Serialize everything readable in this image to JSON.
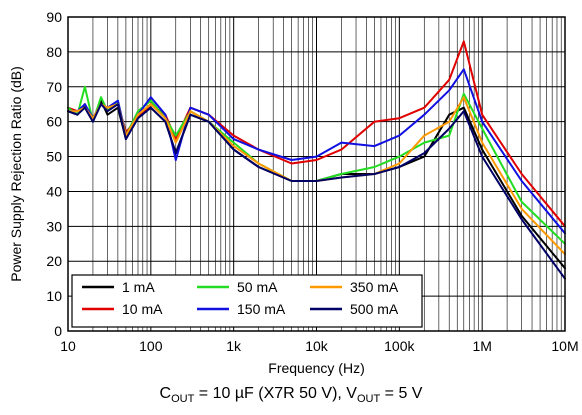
{
  "chart_data": {
    "type": "line",
    "xlabel": "Frequency (Hz)",
    "ylabel": "Power Supply Rejection Ratio (dB)",
    "xscale": "log",
    "xlim": [
      10,
      10000000
    ],
    "ylim": [
      0,
      90
    ],
    "grid": true,
    "legend_position": "bottom-left",
    "x_ticks": [
      10,
      100,
      1000,
      10000,
      100000,
      1000000,
      10000000
    ],
    "x_tick_labels": [
      "10",
      "100",
      "1k",
      "10k",
      "100k",
      "1M",
      "10M"
    ],
    "y_ticks": [
      0,
      10,
      20,
      30,
      40,
      50,
      60,
      70,
      80,
      90
    ],
    "y_tick_labels": [
      "0",
      "10",
      "20",
      "30",
      "40",
      "50",
      "60",
      "70",
      "80",
      "90"
    ],
    "x": [
      10,
      13,
      16,
      20,
      25,
      30,
      40,
      50,
      70,
      100,
      150,
      200,
      300,
      500,
      1000,
      2000,
      5000,
      10000,
      20000,
      50000,
      100000,
      200000,
      400000,
      600000,
      1000000,
      3000000,
      10000000
    ],
    "series": [
      {
        "name": "1 mA",
        "color": "#000000",
        "values": [
          63,
          62,
          65,
          60,
          66,
          62,
          64,
          55,
          62,
          64,
          60,
          51,
          62,
          60,
          52,
          47,
          43,
          43,
          45,
          45,
          47,
          50,
          62,
          64,
          52,
          33,
          18
        ]
      },
      {
        "name": "10 mA",
        "color": "#e00000",
        "values": [
          64,
          63,
          64,
          61,
          65,
          64,
          65,
          57,
          61,
          65,
          62,
          55,
          64,
          62,
          56,
          52,
          48,
          49,
          52,
          60,
          61,
          64,
          72,
          83,
          62,
          45,
          30
        ]
      },
      {
        "name": "50 mA",
        "color": "#22dd22",
        "values": [
          64,
          62,
          70,
          60,
          67,
          63,
          66,
          56,
          63,
          66,
          61,
          56,
          63,
          60,
          54,
          48,
          43,
          43,
          45,
          47,
          50,
          54,
          56,
          68,
          58,
          37,
          25
        ]
      },
      {
        "name": "150 mA",
        "color": "#1010e0",
        "values": [
          63,
          63,
          65,
          61,
          65,
          64,
          66,
          56,
          62,
          67,
          62,
          49,
          64,
          62,
          55,
          52,
          49,
          50,
          54,
          53,
          56,
          62,
          69,
          75,
          60,
          43,
          28
        ]
      },
      {
        "name": "350 mA",
        "color": "#ff9900",
        "values": [
          63,
          63,
          64,
          61,
          65,
          64,
          65,
          56,
          62,
          65,
          61,
          54,
          63,
          60,
          53,
          48,
          43,
          43,
          44,
          45,
          48,
          56,
          60,
          67,
          54,
          35,
          22
        ]
      },
      {
        "name": "500 mA",
        "color": "#000066",
        "values": [
          63,
          62,
          64,
          60,
          65,
          63,
          65,
          55,
          61,
          64,
          60,
          51,
          62,
          60,
          52,
          47,
          43,
          43,
          44,
          45,
          47,
          51,
          58,
          63,
          50,
          32,
          15
        ]
      }
    ]
  },
  "caption": {
    "c_main": "C",
    "c_sub": "OUT",
    "c_rest": " = 10 µF (X7R 50 V), V",
    "v_sub": "OUT",
    "v_rest": " = 5 V"
  }
}
